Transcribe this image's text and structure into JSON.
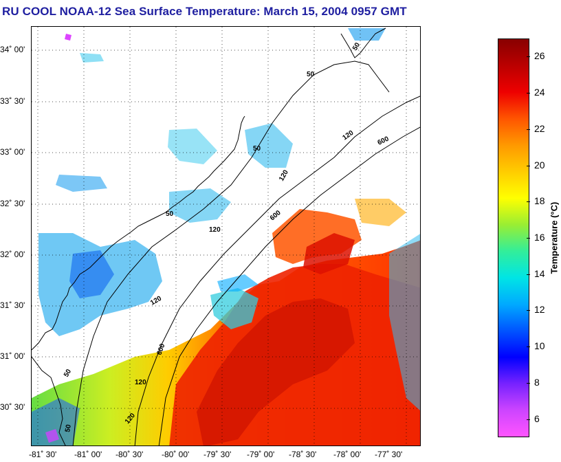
{
  "title": "RU COOL  NOAA-12  Sea Surface Temperature:  March 15, 2004 0957 GMT",
  "map": {
    "lat_labels": [
      "34˚ 00'",
      "33˚ 30'",
      "33˚ 00'",
      "32˚ 30'",
      "32˚ 00'",
      "31˚ 30'",
      "31˚ 00'",
      "30˚ 30'"
    ],
    "lon_labels": [
      "-81˚ 30'",
      "-81˚ 00'",
      "-80˚ 30'",
      "-80˚ 00'",
      "-79˚ 30'",
      "-79˚ 00'",
      "-78˚ 30'",
      "-78˚ 00'",
      "-77˚ 30'"
    ],
    "contours": {
      "labels_50": [
        "50",
        "50",
        "50",
        "50",
        "50",
        "50"
      ],
      "labels_120": [
        "120",
        "120",
        "120",
        "120",
        "120",
        "120"
      ],
      "labels_600": [
        "600",
        "600",
        "600"
      ]
    }
  },
  "colorbar": {
    "label": "Temperature (°C)",
    "ticks": [
      "26",
      "24",
      "22",
      "20",
      "18",
      "16",
      "14",
      "12",
      "10",
      "8",
      "6"
    ],
    "min": 5,
    "max": 27,
    "colors": [
      "#ff55ff",
      "#cc44ff",
      "#7722ff",
      "#0000ff",
      "#0055ff",
      "#00aaff",
      "#00e5e5",
      "#33ee99",
      "#99ee33",
      "#ffff00",
      "#ffcc00",
      "#ff9900",
      "#ff5500",
      "#ee0000",
      "#bb0000",
      "#880000"
    ]
  }
}
